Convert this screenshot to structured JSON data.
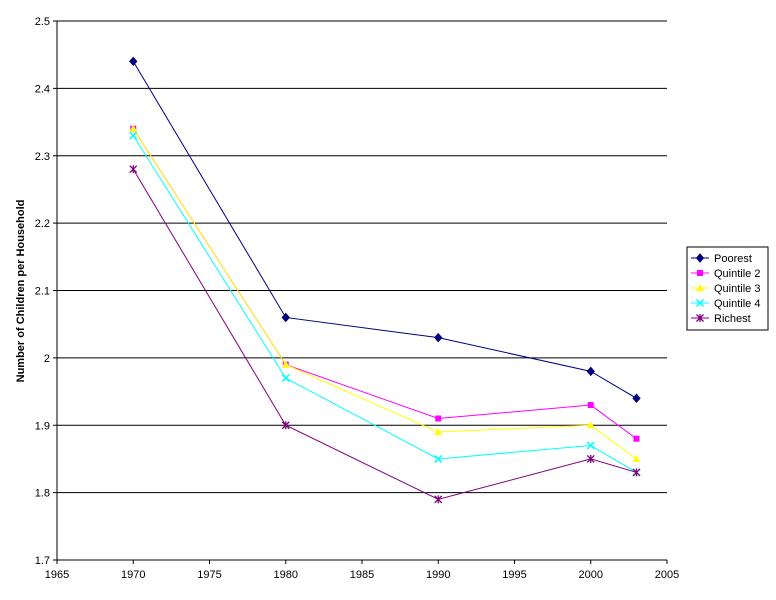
{
  "chart_data": {
    "type": "line",
    "title": "",
    "xlabel": "",
    "ylabel": "Number of Children per Household",
    "xlim": [
      1965,
      2005
    ],
    "ylim": [
      1.7,
      2.5
    ],
    "x_ticks": [
      1965,
      1970,
      1975,
      1980,
      1985,
      1990,
      1995,
      2000,
      2005
    ],
    "y_ticks": [
      1.7,
      1.8,
      1.9,
      2.0,
      2.1,
      2.2,
      2.3,
      2.4,
      2.5
    ],
    "y_tick_labels": [
      "1.7",
      "1.8",
      "1.9",
      "2",
      "2.1",
      "2.2",
      "2.3",
      "2.4",
      "2.5"
    ],
    "grid": "horizontal",
    "legend_position": "right",
    "x": [
      1970,
      1980,
      1990,
      2000,
      2003
    ],
    "series": [
      {
        "name": "Poorest",
        "values": [
          2.44,
          2.06,
          2.03,
          1.98,
          1.94
        ],
        "color": "#000080",
        "marker": "diamond"
      },
      {
        "name": "Quintile 2",
        "values": [
          2.34,
          1.99,
          1.91,
          1.93,
          1.88
        ],
        "color": "#ff00ff",
        "marker": "square"
      },
      {
        "name": "Quintile 3",
        "values": [
          2.34,
          1.99,
          1.89,
          1.9,
          1.85
        ],
        "color": "#ffff00",
        "marker": "triangle"
      },
      {
        "name": "Quintile 4",
        "values": [
          2.33,
          1.97,
          1.85,
          1.87,
          1.83
        ],
        "color": "#00ffff",
        "marker": "x"
      },
      {
        "name": "Richest",
        "values": [
          2.28,
          1.9,
          1.79,
          1.85,
          1.83
        ],
        "color": "#800080",
        "marker": "star"
      }
    ]
  }
}
